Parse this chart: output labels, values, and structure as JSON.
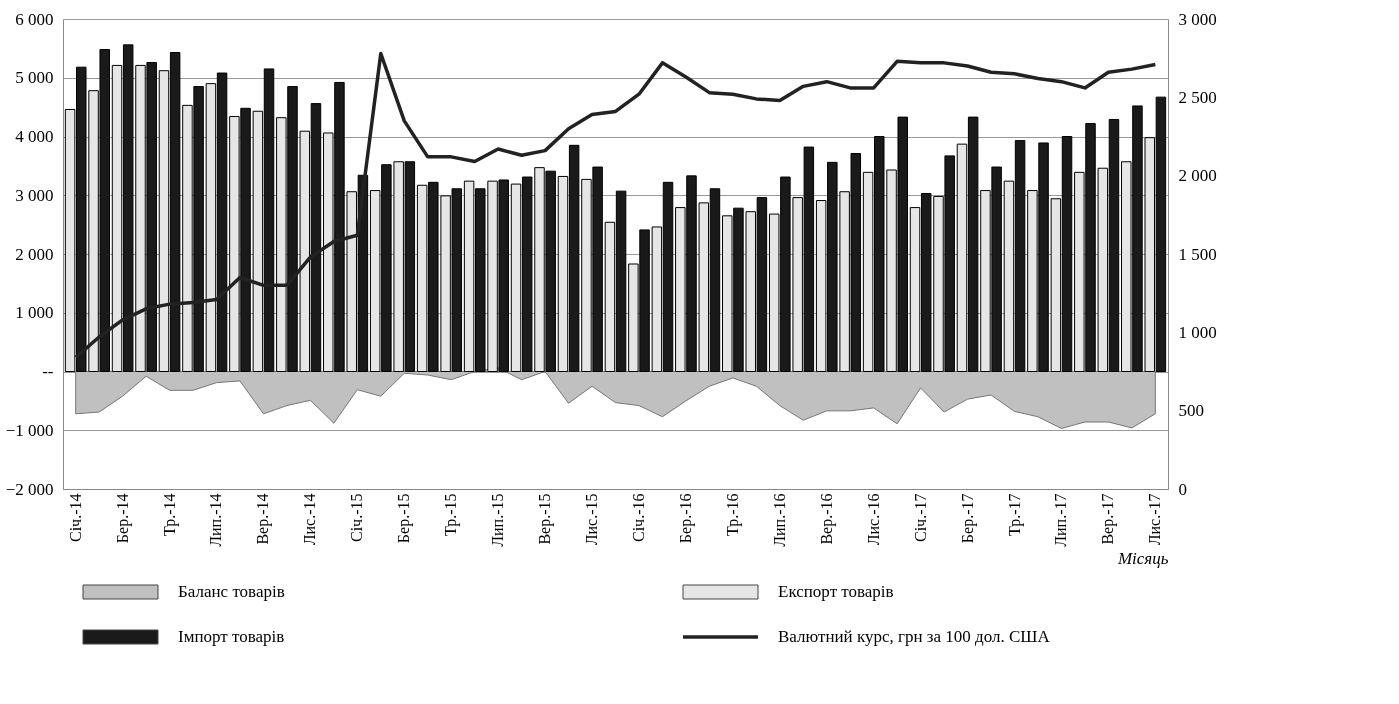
{
  "chart_data": {
    "type": "bar",
    "xlabel": "Місяць",
    "categories": [
      "Січ.-14",
      null,
      "Бер.-14",
      null,
      "Тр.-14",
      null,
      "Лип.-14",
      null,
      "Вер.-14",
      null,
      "Лис.-14",
      null,
      "Січ.-15",
      null,
      "Бер.-15",
      null,
      "Тр.-15",
      null,
      "Лип.-15",
      null,
      "Вер.-15",
      null,
      "Лис.-15",
      null,
      "Січ.-16",
      null,
      "Бер.-16",
      null,
      "Тр.-16",
      null,
      "Лип.-16",
      null,
      "Вер.-16",
      null,
      "Лис.-16",
      null,
      "Січ.-17",
      null,
      "Бер.-17",
      null,
      "Тр.-17",
      null,
      "Лип.-17",
      null,
      "Вер.-17",
      null,
      "Лис.-17"
    ],
    "series": [
      {
        "name": "Баланс товарів",
        "type": "area",
        "color": "#c0c0c0",
        "values": [
          -720,
          -690,
          -420,
          -80,
          -320,
          -320,
          -190,
          -160,
          -720,
          -580,
          -490,
          -880,
          -310,
          -420,
          -30,
          -60,
          -140,
          0,
          60,
          -140,
          0,
          -540,
          -250,
          -530,
          -580,
          -770,
          -500,
          -250,
          -110,
          -250,
          -580,
          -830,
          -670,
          -670,
          -620,
          -890,
          -280,
          -690,
          -470,
          -400,
          -680,
          -770,
          -970,
          -860,
          -860,
          -960,
          -720
        ]
      },
      {
        "name": "Експорт товарів",
        "color": "#e6e6e6",
        "values": [
          4460,
          4780,
          5210,
          5210,
          5120,
          4530,
          4900,
          4340,
          4430,
          4320,
          4090,
          4060,
          3060,
          3080,
          3570,
          3170,
          2990,
          3240,
          3240,
          3190,
          3470,
          3320,
          3270,
          2540,
          1830,
          2460,
          2790,
          2870,
          2650,
          2720,
          2680,
          2960,
          2910,
          3060,
          3390,
          3430,
          2790,
          2980,
          3870,
          3080,
          3240,
          3080,
          2940,
          3390,
          3460,
          3570,
          3980
        ]
      },
      {
        "name": "Імпорт товарів",
        "color": "#1a1a1a",
        "values": [
          5180,
          5480,
          5560,
          5260,
          5430,
          4850,
          5080,
          4480,
          5150,
          4850,
          4560,
          4920,
          3340,
          3520,
          3570,
          3220,
          3110,
          3110,
          3260,
          3310,
          3410,
          3850,
          3480,
          3070,
          2410,
          3220,
          3330,
          3110,
          2780,
          2960,
          3310,
          3820,
          3560,
          3710,
          4000,
          4330,
          3030,
          3670,
          4330,
          3480,
          3930,
          3890,
          4000,
          4220,
          4290,
          4520,
          4670
        ]
      },
      {
        "name": "Валютний курс, грн за 100 дол. США",
        "type": "line",
        "axis": "y2",
        "color": "#222222",
        "values": [
          840,
          970,
          1080,
          1150,
          1180,
          1190,
          1210,
          1350,
          1300,
          1300,
          1480,
          1580,
          1620,
          2780,
          2350,
          2120,
          2120,
          2090,
          2170,
          2130,
          2160,
          2300,
          2390,
          2410,
          2520,
          2720,
          2630,
          2530,
          2520,
          2490,
          2480,
          2570,
          2600,
          2560,
          2560,
          2730,
          2720,
          2720,
          2700,
          2660,
          2650,
          2620,
          2600,
          2560,
          2660,
          2680,
          2710
        ]
      }
    ],
    "ylim": [
      -2000,
      6000
    ],
    "yticks": [
      {
        "value": -2000,
        "label": "−2 000"
      },
      {
        "value": -1000,
        "label": "−1 000"
      },
      {
        "value": 0,
        "label": "--"
      },
      {
        "value": 1000,
        "label": "1 000"
      },
      {
        "value": 2000,
        "label": "2 000"
      },
      {
        "value": 3000,
        "label": "3 000"
      },
      {
        "value": 4000,
        "label": "4 000"
      },
      {
        "value": 5000,
        "label": "5 000"
      },
      {
        "value": 6000,
        "label": "6 000"
      }
    ],
    "y2lim": [
      0,
      3000
    ],
    "y2ticks": [
      0,
      500,
      {
        "value": 1000,
        "label": "1 000"
      },
      {
        "value": 1500,
        "label": "1 500"
      },
      {
        "value": 2000,
        "label": "2 000"
      },
      {
        "value": 2500,
        "label": "2 500"
      },
      {
        "value": 3000,
        "label": "3 000"
      }
    ],
    "grid": "y",
    "legend": "bottom"
  }
}
